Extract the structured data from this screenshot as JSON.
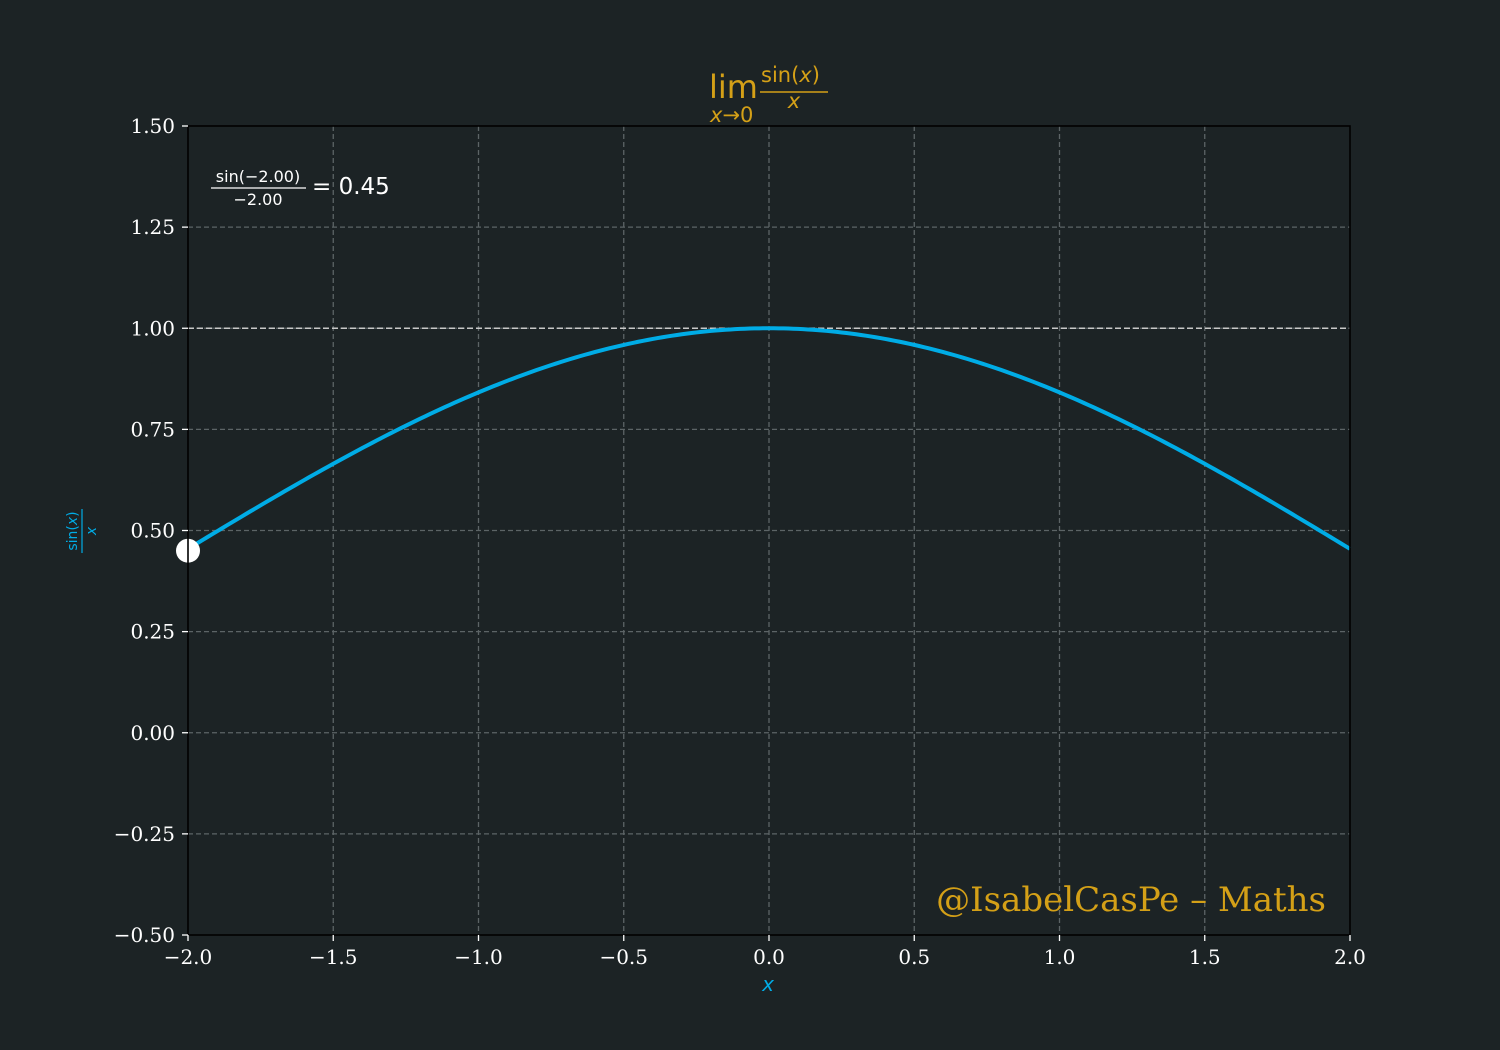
{
  "colors": {
    "background": "#1c2325",
    "curve": "#00ace6",
    "title": "#d4a017",
    "grid": "#5c6466",
    "reference_line": "#c8c8c8",
    "marker": "#ffffff",
    "text": "#ffffff"
  },
  "chart_data": {
    "type": "line",
    "title": {
      "lim": "lim",
      "numerator": "sin(",
      "numerator_var": "x",
      "numerator_close": ")",
      "denominator": "x",
      "subscript_var": "x",
      "subscript_rest": "→0"
    },
    "xlabel": "x",
    "ylabel": {
      "numerator": "sin(",
      "numerator_var": "x",
      "numerator_close": ")",
      "denominator": "x"
    },
    "xlim": [
      -2.0,
      2.0
    ],
    "ylim": [
      -0.5,
      1.5
    ],
    "xticks": [
      -2.0,
      -1.5,
      -1.0,
      -0.5,
      0.0,
      0.5,
      1.0,
      1.5,
      2.0
    ],
    "xtick_labels": [
      "−2.0",
      "−1.5",
      "−1.0",
      "−0.5",
      "0.0",
      "0.5",
      "1.0",
      "1.5",
      "2.0"
    ],
    "yticks": [
      -0.5,
      -0.25,
      0.0,
      0.25,
      0.5,
      0.75,
      1.0,
      1.25,
      1.5
    ],
    "ytick_labels": [
      "−0.50",
      "−0.25",
      "0.00",
      "0.25",
      "0.50",
      "0.75",
      "1.00",
      "1.25",
      "1.50"
    ],
    "grid": true,
    "series": [
      {
        "function": "sin(x)/x",
        "x": [
          -2.0,
          -1.75,
          -1.5,
          -1.25,
          -1.0,
          -0.75,
          -0.5,
          -0.25,
          0.0,
          0.25,
          0.5,
          0.75,
          1.0,
          1.25,
          1.5,
          1.75,
          2.0
        ],
        "y": [
          0.455,
          0.563,
          0.665,
          0.759,
          0.841,
          0.909,
          0.959,
          0.99,
          1.0,
          0.99,
          0.959,
          0.909,
          0.841,
          0.759,
          0.665,
          0.563,
          0.455
        ]
      }
    ],
    "reference_line": {
      "y": 1.0
    },
    "marker": {
      "x": -2.0,
      "y": 0.45
    },
    "annotation": {
      "numerator": "sin(−2.00)",
      "denominator": "−2.00",
      "result": "= 0.45"
    },
    "watermark": "@IsabelCasPe – Maths"
  }
}
